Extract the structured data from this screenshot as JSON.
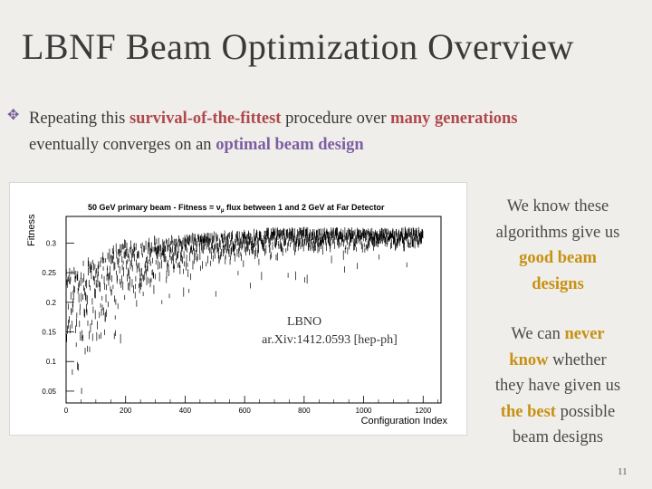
{
  "slide": {
    "title": "LBNF Beam Optimization Overview",
    "bullet": {
      "part1": "Repeating this ",
      "hl1": "survival-of-the-fittest",
      "part2": " procedure over ",
      "hl2": "many generations",
      "part3": "eventually converges on an ",
      "hl3": "optimal beam design"
    },
    "side_text": {
      "p1_line1": "We know these",
      "p1_line2": "algorithms give us",
      "p1_hl_line3": "good beam",
      "p1_hl_line4": "designs",
      "p2_line1a": "We can ",
      "p2_hl_never": "never",
      "p2_hl_know": "know",
      "p2_line2b": " whether",
      "p2_line3": "they have given us",
      "p2_hl_best": "the best",
      "p2_line4b": " possible",
      "p2_line5": "beam designs"
    },
    "page_number": "11",
    "colors": {
      "background": "#efeeea",
      "highlight_red": "#b0484c",
      "highlight_purple": "#7d5ea3",
      "highlight_orange": "#c79112"
    }
  },
  "chart_data": {
    "type": "scatter",
    "title_prefix": "50 GeV primary beam - Fitness = ν",
    "title_subscript": "μ",
    "title_suffix": " flux between 1 and 2 GeV at Far Detector",
    "xlabel": "Configuration Index",
    "ylabel": "Fitness",
    "xlim": [
      0,
      1260
    ],
    "ylim": [
      0.03,
      0.345
    ],
    "x_ticks": [
      0,
      200,
      400,
      600,
      800,
      1000,
      1200
    ],
    "y_ticks": [
      0.05,
      0.1,
      0.15,
      0.2,
      0.25,
      0.3
    ],
    "y_tick_labels": [
      "0.05",
      "0.1",
      "0.15",
      "0.2",
      "0.25",
      "0.3"
    ],
    "error_bars": true,
    "annotation_lines": [
      "LBNO",
      "ar.Xiv:1412.0593 [hep-ph]"
    ],
    "trend": {
      "description_values": [
        {
          "x": 0,
          "y_low": 0.06,
          "y_high": 0.25
        },
        {
          "x": 100,
          "y_low": 0.1,
          "y_high": 0.28
        },
        {
          "x": 200,
          "y_low": 0.2,
          "y_high": 0.3
        },
        {
          "x": 400,
          "y_low": 0.25,
          "y_high": 0.31
        },
        {
          "x": 700,
          "y_low": 0.28,
          "y_high": 0.32
        },
        {
          "x": 1200,
          "y_low": 0.29,
          "y_high": 0.32
        }
      ],
      "n_points": 1200
    }
  }
}
